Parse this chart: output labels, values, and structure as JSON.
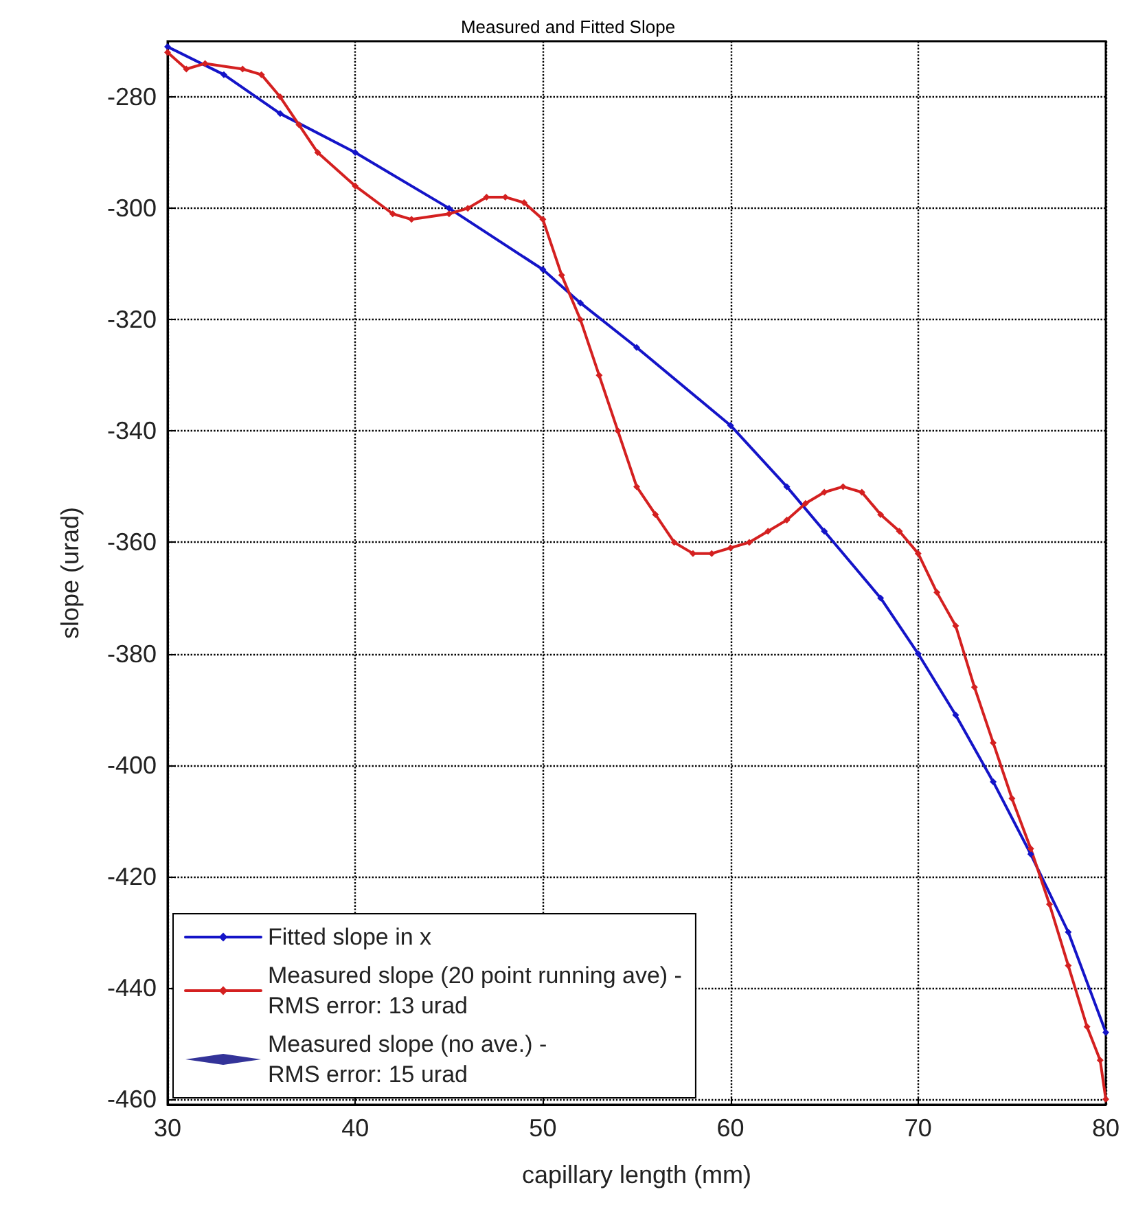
{
  "chart_data": {
    "type": "line",
    "title": "Measured and Fitted Slope",
    "xlabel": "capillary length (mm)",
    "ylabel": "slope (urad)",
    "xlim": [
      30,
      80
    ],
    "xticks": [
      30,
      40,
      50,
      60,
      70,
      80
    ],
    "ylim": [
      -461,
      -270
    ],
    "yticks": [
      -280,
      -300,
      -320,
      -340,
      -360,
      -380,
      -400,
      -420,
      -440,
      -460
    ],
    "grid": true,
    "legend": "bottom left",
    "marker": "diamond",
    "line_style": "solid",
    "series": [
      {
        "name": "Fitted slope in x",
        "color": "#1414c8",
        "x": [
          30,
          33,
          36,
          40,
          45,
          50,
          52,
          55,
          60,
          63,
          65,
          68,
          70,
          72,
          74,
          76,
          78,
          80
        ],
        "values": [
          -271,
          -276,
          -283,
          -290,
          -300,
          -311,
          -317,
          -325,
          -339,
          -350,
          -358,
          -370,
          -380,
          -391,
          -403,
          -416,
          -430,
          -448
        ]
      },
      {
        "name": "Measured slope (20 point running ave) -\nRMS error: 13 urad",
        "color": "#d42020",
        "x": [
          30,
          31,
          32,
          34,
          35,
          36,
          37,
          38,
          40,
          42,
          43,
          45,
          46,
          47,
          48,
          49,
          50,
          51,
          52,
          53,
          54,
          55,
          56,
          57,
          58,
          59,
          60,
          61,
          62,
          63,
          64,
          65,
          66,
          67,
          68,
          69,
          70,
          71,
          72,
          73,
          74,
          75,
          76,
          77,
          78,
          79,
          79.7,
          80
        ],
        "values": [
          -272,
          -275,
          -274,
          -275,
          -276,
          -280,
          -285,
          -290,
          -296,
          -301,
          -302,
          -301,
          -300,
          -298,
          -298,
          -299,
          -302,
          -312,
          -320,
          -330,
          -340,
          -350,
          -355,
          -360,
          -362,
          -362,
          -361,
          -360,
          -358,
          -356,
          -353,
          -351,
          -350,
          -351,
          -355,
          -358,
          -362,
          -369,
          -375,
          -386,
          -396,
          -406,
          -415,
          -425,
          -436,
          -447,
          -453,
          -460
        ]
      },
      {
        "name": "Measured slope (no ave.) -\nRMS error: 15 urad",
        "type": "scatter",
        "color": "#000080"
      }
    ]
  }
}
